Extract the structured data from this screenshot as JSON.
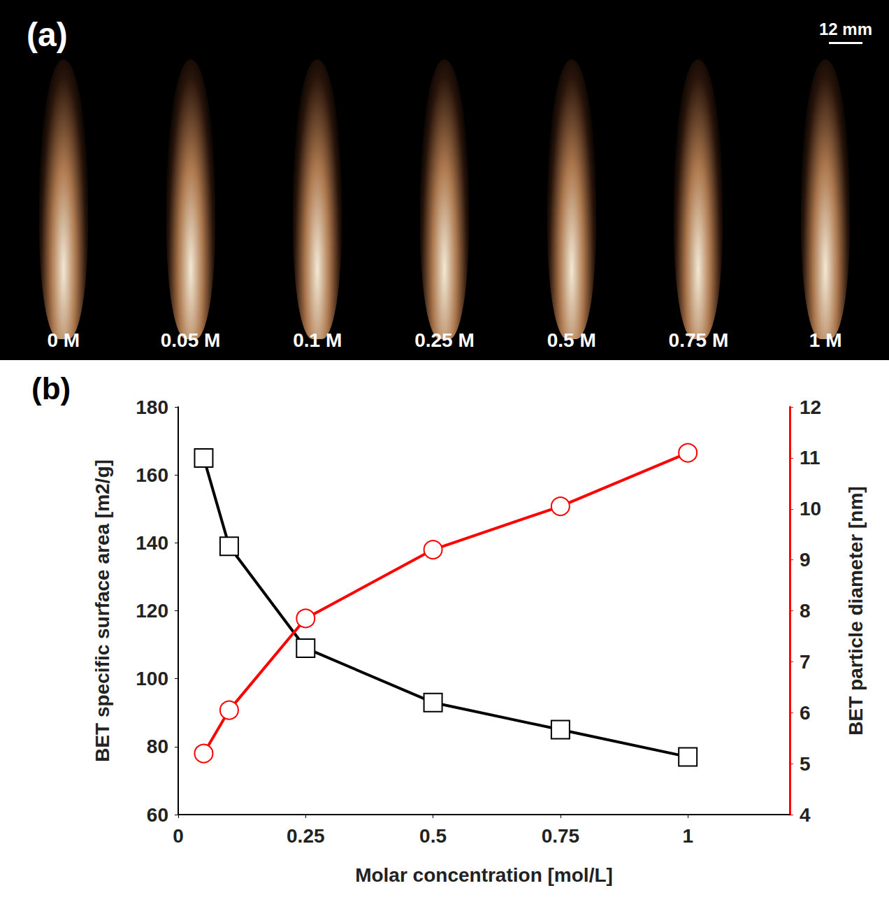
{
  "panel_a": {
    "letter": "(a)",
    "scale_bar": "12 mm",
    "labels": [
      "0 M",
      "0.05 M",
      "0.1 M",
      "0.25 M",
      "0.5 M",
      "0.75 M",
      "1 M"
    ]
  },
  "chart_data": {
    "type": "line",
    "title": "(b)",
    "x_label": "Molar concentration [mol/L]",
    "y_label": "BET specific surface area [m2/g]",
    "y2_label": "BET particle diameter [nm]",
    "x": [
      0.05,
      0.1,
      0.25,
      0.5,
      0.75,
      1
    ],
    "xlim": [
      0,
      1.2
    ],
    "xticks": [
      0,
      0.25,
      0.5,
      0.75,
      1
    ],
    "ylim": [
      60,
      180
    ],
    "yticks": [
      60,
      80,
      100,
      120,
      140,
      160,
      180
    ],
    "y2lim": [
      4,
      12
    ],
    "y2ticks": [
      4,
      5,
      6,
      7,
      8,
      9,
      10,
      11,
      12
    ],
    "grid": false,
    "series": [
      {
        "color": "#000000",
        "marker": "square",
        "values": [
          165,
          139,
          109,
          93,
          85,
          77
        ]
      },
      {
        "color": "#ff0000",
        "marker": "circle",
        "axis": "y2",
        "values": [
          5.2,
          6.05,
          7.85,
          9.2,
          10.05,
          11.1
        ]
      }
    ]
  }
}
